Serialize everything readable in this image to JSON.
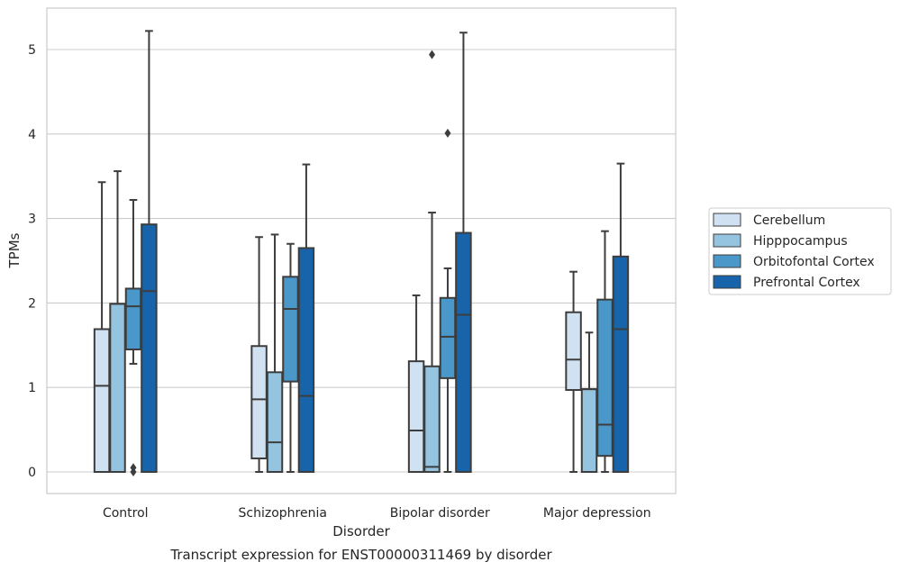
{
  "caption": "Transcript expression for ENST00000311469 by disorder",
  "chart_data": {
    "type": "box",
    "xlabel": "Disorder",
    "ylabel": "TPMs",
    "ylim": [
      -0.25,
      5.5
    ],
    "yticks": [
      0,
      1,
      2,
      3,
      4,
      5
    ],
    "grid": "horizontal",
    "legend_position": "right",
    "categories": [
      "Control",
      "Schizophrenia",
      "Bipolar disorder",
      "Major depression"
    ],
    "series": [
      {
        "name": "Cerebellum",
        "color": "#d0e1f2",
        "boxes": [
          {
            "whisker_low": 0.0,
            "q1": 0.0,
            "median": 1.02,
            "q3": 1.69,
            "whisker_high": 3.43,
            "outliers": []
          },
          {
            "whisker_low": 0.0,
            "q1": 0.16,
            "median": 0.86,
            "q3": 1.49,
            "whisker_high": 2.78,
            "outliers": []
          },
          {
            "whisker_low": 0.0,
            "q1": 0.0,
            "median": 0.49,
            "q3": 1.31,
            "whisker_high": 2.09,
            "outliers": []
          },
          {
            "whisker_low": 0.0,
            "q1": 0.97,
            "median": 1.33,
            "q3": 1.89,
            "whisker_high": 2.37,
            "outliers": []
          }
        ]
      },
      {
        "name": "Hipppocampus",
        "color": "#94c4df",
        "boxes": [
          {
            "whisker_low": 0.0,
            "q1": 0.0,
            "median": 1.99,
            "q3": 1.99,
            "whisker_high": 3.56,
            "outliers": []
          },
          {
            "whisker_low": 0.0,
            "q1": 0.0,
            "median": 0.35,
            "q3": 1.18,
            "whisker_high": 2.81,
            "outliers": []
          },
          {
            "whisker_low": 0.0,
            "q1": 0.0,
            "median": 0.06,
            "q3": 1.25,
            "whisker_high": 3.07,
            "outliers": [
              4.94
            ]
          },
          {
            "whisker_low": 0.0,
            "q1": 0.0,
            "median": 0.98,
            "q3": 0.98,
            "whisker_high": 1.65,
            "outliers": []
          }
        ]
      },
      {
        "name": "Orbitofontal Cortex",
        "color": "#4a98c9",
        "boxes": [
          {
            "whisker_low": 1.28,
            "q1": 1.45,
            "median": 1.96,
            "q3": 2.17,
            "whisker_high": 3.22,
            "outliers": [
              0.0,
              0.05
            ]
          },
          {
            "whisker_low": 0.0,
            "q1": 1.07,
            "median": 1.93,
            "q3": 2.31,
            "whisker_high": 2.7,
            "outliers": []
          },
          {
            "whisker_low": 0.0,
            "q1": 1.11,
            "median": 1.6,
            "q3": 2.06,
            "whisker_high": 2.41,
            "outliers": [
              4.01
            ]
          },
          {
            "whisker_low": 0.0,
            "q1": 0.19,
            "median": 0.56,
            "q3": 2.04,
            "whisker_high": 2.85,
            "outliers": []
          }
        ]
      },
      {
        "name": "Prefrontal Cortex",
        "color": "#1764ab",
        "boxes": [
          {
            "whisker_low": 0.0,
            "q1": 0.0,
            "median": 2.14,
            "q3": 2.93,
            "whisker_high": 5.22,
            "outliers": []
          },
          {
            "whisker_low": 0.0,
            "q1": 0.0,
            "median": 0.9,
            "q3": 2.65,
            "whisker_high": 3.64,
            "outliers": []
          },
          {
            "whisker_low": 0.0,
            "q1": 0.0,
            "median": 1.86,
            "q3": 2.83,
            "whisker_high": 5.2,
            "outliers": []
          },
          {
            "whisker_low": 0.0,
            "q1": 0.0,
            "median": 1.69,
            "q3": 2.55,
            "whisker_high": 3.65,
            "outliers": []
          }
        ]
      }
    ]
  }
}
